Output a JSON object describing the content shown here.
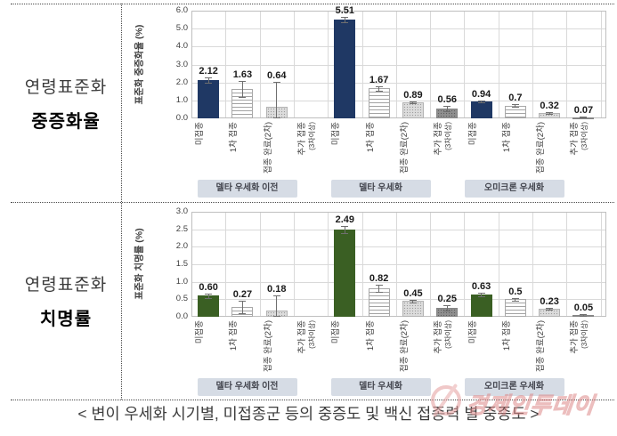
{
  "left_panel": {
    "rows": [
      {
        "line1": "연령표준화",
        "line2": "중증화율"
      },
      {
        "line1": "연령표준화",
        "line2": "치명률"
      }
    ]
  },
  "caption": "< 변이 우세화 시기별, 미접종군 등의 중증도 및 백신 접종력 별 중증도 >",
  "watermark": {
    "text": "경제인투데이",
    "color": "#DD8888"
  },
  "colors": {
    "grid": "#D9D9D9",
    "plot_border": "#BFBFBF",
    "tick_text": "#404040",
    "value_label": "#1a1a1a",
    "group_box_bg": "#D6DCE5",
    "group_box_text": "#44464f",
    "whisker": "#6f6f6f",
    "severity_bar": "#1F3864",
    "fatality_bar": "#3A5F23"
  },
  "chart_data": [
    {
      "type": "bar",
      "title": "연령표준화 중증화율",
      "ylabel": "표준화 중증화율 (%)",
      "ylim": [
        0,
        6
      ],
      "yticks": [
        "6.0",
        "5.0",
        "4.0",
        "3.0",
        "2.0",
        "1.0",
        "0.0"
      ],
      "grid": true,
      "bar_color": "#1F3864",
      "categories": [
        [
          "미접종",
          ""
        ],
        [
          "1차 접종",
          ""
        ],
        [
          "접종 완료(2차)",
          ""
        ],
        [
          "추가 접종",
          "(3차이상)"
        ]
      ],
      "groups": [
        {
          "label": "델타 우세화 이전",
          "values": [
            2.12,
            1.63,
            0.64,
            null
          ],
          "labels": [
            "2.12",
            "1.63",
            "0.64",
            ""
          ],
          "err": [
            [
              1.98,
              2.26
            ],
            [
              1.2,
              2.08
            ],
            [
              0.05,
              2.05
            ],
            null
          ]
        },
        {
          "label": "델타 우세화",
          "values": [
            5.51,
            1.67,
            0.89,
            0.56
          ],
          "labels": [
            "5.51",
            "1.67",
            "0.89",
            "0.56"
          ],
          "err": [
            [
              5.35,
              5.64
            ],
            [
              1.55,
              1.8
            ],
            [
              0.82,
              0.96
            ],
            [
              0.42,
              0.7
            ]
          ]
        },
        {
          "label": "오미크론 우세화",
          "values": [
            0.94,
            0.7,
            0.32,
            0.07
          ],
          "labels": [
            "0.94",
            "0.7",
            "0.32",
            "0.07"
          ],
          "err": [
            [
              0.87,
              1.01
            ],
            [
              0.63,
              0.77
            ],
            [
              0.27,
              0.37
            ],
            [
              0.04,
              0.1
            ]
          ]
        }
      ]
    },
    {
      "type": "bar",
      "title": "연령표준화 치명률",
      "ylabel": "표준화 치명률 (%)",
      "ylim": [
        0,
        3
      ],
      "yticks": [
        "3.0",
        "2.5",
        "2.0",
        "1.5",
        "1.0",
        "0.5",
        "0.0"
      ],
      "grid": true,
      "bar_color": "#3A5F23",
      "categories": [
        [
          "미접종",
          ""
        ],
        [
          "1차 접종",
          ""
        ],
        [
          "접종 완료(2차)",
          ""
        ],
        [
          "추가 접종",
          "(3차이상)"
        ]
      ],
      "groups": [
        {
          "label": "델타 우세화 이전",
          "values": [
            0.6,
            0.27,
            0.18,
            null
          ],
          "labels": [
            "0.60",
            "0.27",
            "0.18",
            ""
          ],
          "err": [
            [
              0.53,
              0.67
            ],
            [
              0.1,
              0.45
            ],
            [
              0.02,
              0.62
            ],
            null
          ]
        },
        {
          "label": "델타 우세화",
          "values": [
            2.49,
            0.82,
            0.45,
            0.25
          ],
          "labels": [
            "2.49",
            "0.82",
            "0.45",
            "0.25"
          ],
          "err": [
            [
              2.38,
              2.6
            ],
            [
              0.72,
              0.92
            ],
            [
              0.41,
              0.49
            ],
            [
              0.18,
              0.32
            ]
          ]
        },
        {
          "label": "오미크론 우세화",
          "values": [
            0.63,
            0.5,
            0.23,
            0.05
          ],
          "labels": [
            "0.63",
            "0.5",
            "0.23",
            "0.05"
          ],
          "err": [
            [
              0.58,
              0.68
            ],
            [
              0.46,
              0.54
            ],
            [
              0.2,
              0.26
            ],
            [
              0.03,
              0.07
            ]
          ]
        }
      ]
    }
  ]
}
